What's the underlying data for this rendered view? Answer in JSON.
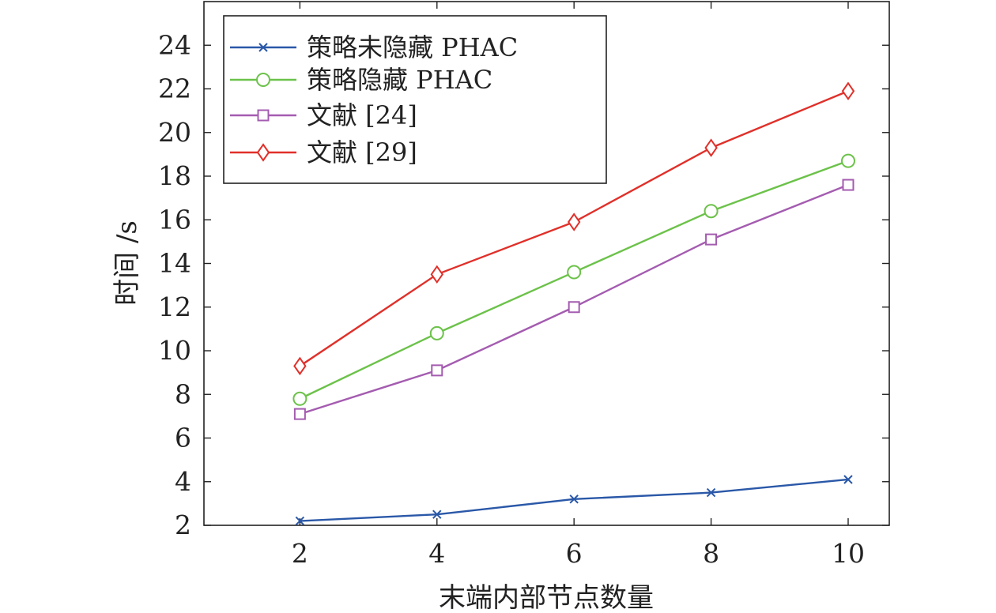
{
  "chart_data": {
    "type": "line",
    "xlabel": "末端内部节点数量",
    "ylabel": "时间 /s",
    "xlim": [
      0.6,
      10.6
    ],
    "ylim": [
      2,
      26
    ],
    "x_ticks": [
      2,
      4,
      6,
      8,
      10
    ],
    "y_ticks": [
      2,
      4,
      6,
      8,
      10,
      12,
      14,
      16,
      18,
      20,
      22,
      24
    ],
    "grid": false,
    "legend_position": "top-left",
    "series": [
      {
        "name": "策略未隐藏 PHAC",
        "color": "#2a58a8",
        "marker": "x",
        "x": [
          2,
          4,
          6,
          8,
          10
        ],
        "y": [
          2.2,
          2.5,
          3.2,
          3.5,
          4.1
        ]
      },
      {
        "name": "策略隐藏 PHAC",
        "color": "#6cc24a",
        "marker": "circle",
        "x": [
          2,
          4,
          6,
          8,
          10
        ],
        "y": [
          7.8,
          10.8,
          13.6,
          16.4,
          18.7
        ]
      },
      {
        "name": "文献 [24]",
        "color": "#a45cb0",
        "marker": "square",
        "x": [
          2,
          4,
          6,
          8,
          10
        ],
        "y": [
          7.1,
          9.1,
          12.0,
          15.1,
          17.6
        ]
      },
      {
        "name": "文献 [29]",
        "color": "#e0302a",
        "marker": "diamond",
        "x": [
          2,
          4,
          6,
          8,
          10
        ],
        "y": [
          9.3,
          13.5,
          15.9,
          19.3,
          21.9
        ]
      }
    ]
  }
}
